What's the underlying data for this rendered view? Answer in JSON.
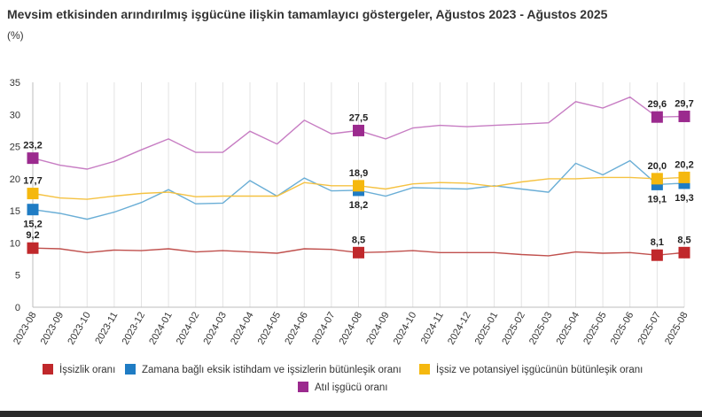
{
  "chart_data": {
    "type": "line",
    "title": "Mevsim etkisinden arındırılmış işgücüne ilişkin tamamlayıcı göstergeler, Ağustos 2023 - Ağustos 2025",
    "ylabel": "(%)",
    "xlabel": "",
    "ylim": [
      0,
      35
    ],
    "yticks": [
      0,
      5,
      10,
      15,
      20,
      25,
      30,
      35
    ],
    "grid": "vertical",
    "legend_position": "bottom",
    "categories": [
      "2023-08",
      "2023-09",
      "2023-10",
      "2023-11",
      "2023-12",
      "2024-01",
      "2024-02",
      "2024-03",
      "2024-04",
      "2024-05",
      "2024-06",
      "2024-07",
      "2024-08",
      "2024-09",
      "2024-10",
      "2024-11",
      "2024-12",
      "2025-01",
      "2025-02",
      "2025-03",
      "2025-04",
      "2025-05",
      "2025-06",
      "2025-07",
      "2025-08"
    ],
    "series": [
      {
        "name": "İşsizlik oranı",
        "color": "#c0504d",
        "marker_color": "#c0282b",
        "values": [
          9.2,
          9.1,
          8.5,
          8.9,
          8.8,
          9.1,
          8.6,
          8.8,
          8.6,
          8.4,
          9.1,
          9.0,
          8.5,
          8.6,
          8.8,
          8.5,
          8.5,
          8.5,
          8.2,
          8.0,
          8.6,
          8.4,
          8.5,
          8.1,
          8.5
        ],
        "labels": [
          {
            "i": 0,
            "text": "9,2",
            "pos": "above"
          },
          {
            "i": 12,
            "text": "8,5",
            "pos": "above"
          },
          {
            "i": 23,
            "text": "8,1",
            "pos": "above"
          },
          {
            "i": 24,
            "text": "8,5",
            "pos": "above"
          }
        ]
      },
      {
        "name": "Zamana bağlı eksik istihdam ve işsizlerin bütünleşik oranı",
        "color": "#6aaed6",
        "marker_color": "#1f7cc4",
        "values": [
          15.2,
          14.6,
          13.7,
          14.8,
          16.3,
          18.3,
          16.1,
          16.2,
          19.7,
          17.3,
          20.1,
          18.1,
          18.2,
          17.3,
          18.6,
          18.5,
          18.4,
          18.9,
          18.4,
          17.9,
          22.4,
          20.6,
          22.8,
          19.1,
          19.3
        ],
        "labels": [
          {
            "i": 0,
            "text": "15,2",
            "pos": "below"
          },
          {
            "i": 12,
            "text": "18,2",
            "pos": "below"
          },
          {
            "i": 23,
            "text": "19,1",
            "pos": "below"
          },
          {
            "i": 24,
            "text": "19,3",
            "pos": "below"
          }
        ]
      },
      {
        "name": "İşsiz ve potansiyel işgücünün bütünleşik oranı",
        "color": "#f5c242",
        "marker_color": "#f5b80f",
        "values": [
          17.7,
          17.0,
          16.8,
          17.3,
          17.7,
          17.9,
          17.2,
          17.3,
          17.3,
          17.3,
          19.4,
          18.9,
          18.9,
          18.4,
          19.2,
          19.4,
          19.3,
          18.8,
          19.5,
          20.0,
          20.0,
          20.2,
          20.2,
          20.0,
          20.2
        ],
        "labels": [
          {
            "i": 0,
            "text": "17,7",
            "pos": "above"
          },
          {
            "i": 12,
            "text": "18,9",
            "pos": "above"
          },
          {
            "i": 23,
            "text": "20,0",
            "pos": "above"
          },
          {
            "i": 24,
            "text": "20,2",
            "pos": "above"
          }
        ]
      },
      {
        "name": "Atıl işgücü oranı",
        "color": "#c77dc3",
        "marker_color": "#9b2a8e",
        "values": [
          23.2,
          22.1,
          21.5,
          22.7,
          24.5,
          26.2,
          24.1,
          24.1,
          27.4,
          25.4,
          29.1,
          27.0,
          27.5,
          26.2,
          27.9,
          28.3,
          28.1,
          28.3,
          28.5,
          28.7,
          32.0,
          31.0,
          32.7,
          29.6,
          29.7
        ],
        "labels": [
          {
            "i": 0,
            "text": "23,2",
            "pos": "above"
          },
          {
            "i": 12,
            "text": "27,5",
            "pos": "above"
          },
          {
            "i": 23,
            "text": "29,6",
            "pos": "above"
          },
          {
            "i": 24,
            "text": "29,7",
            "pos": "above"
          }
        ]
      }
    ]
  },
  "legend": {
    "items": [
      {
        "label": "İşsizlik oranı",
        "color": "#c0282b"
      },
      {
        "label": "Zamana bağlı eksik istihdam ve işsizlerin bütünleşik oranı",
        "color": "#1f7cc4"
      },
      {
        "label": "İşsiz ve potansiyel işgücünün bütünleşik oranı",
        "color": "#f5b80f"
      },
      {
        "label": "Atıl işgücü oranı",
        "color": "#9b2a8e"
      }
    ]
  }
}
